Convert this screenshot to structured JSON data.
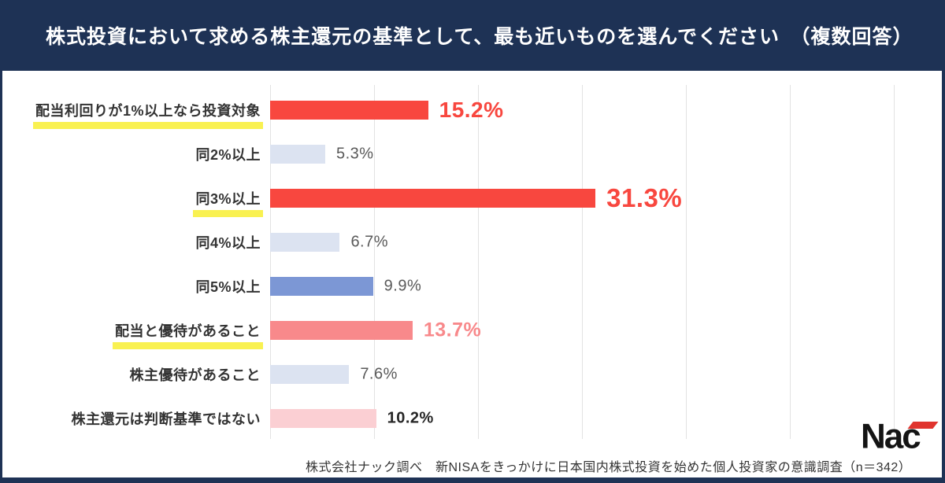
{
  "header": {
    "title": "株式投資において求める株主還元の基準として、最も近いものを選んでください　（複数回答）",
    "background": "#1E3255",
    "text_color": "#FFFFFF"
  },
  "chart_data": {
    "type": "bar",
    "orientation": "horizontal",
    "title": "株式投資において求める株主還元の基準として、最も近いものを選んでください（複数回答）",
    "categories": [
      "配当利回りが1%以上なら投資対象",
      "同2%以上",
      "同3%以上",
      "同4%以上",
      "同5%以上",
      "配当と優待があること",
      "株主優待があること",
      "株主還元は判断基準ではない"
    ],
    "values": [
      15.2,
      5.3,
      31.3,
      6.7,
      9.9,
      13.7,
      7.6,
      10.2
    ],
    "value_labels": [
      "15.2%",
      "5.3%",
      "31.3%",
      "6.7%",
      "9.9%",
      "13.7%",
      "7.6%",
      "10.2%"
    ],
    "highlighted": [
      true,
      false,
      true,
      false,
      false,
      true,
      false,
      false
    ],
    "bar_colors": [
      "#F8473F",
      "#DCE3F1",
      "#F8473F",
      "#DCE3F1",
      "#7C97D5",
      "#F8898B",
      "#DCE3F1",
      "#FBCFD3"
    ],
    "value_label_styles": [
      "v-red-lg",
      "v-gray",
      "v-red-xl",
      "v-gray",
      "v-gray",
      "v-salmon",
      "v-gray",
      "v-dark"
    ],
    "xlabel": "",
    "ylabel": "",
    "xlim": [
      0,
      60
    ],
    "gridline_step_pct": 10,
    "grid": true,
    "legend": false,
    "highlight_color": "#F9F151",
    "source_note": "株式会社ナック調べ　新NISAをきっかけに日本国内株式投資を始めた個人投資家の意識調査（n＝342）"
  },
  "footer": {
    "source": "株式会社ナック調べ　新NISAをきっかけに日本国内株式投資を始めた個人投資家の意識調査（n＝342）"
  },
  "logo": {
    "text": "Nac",
    "accent_color": "#E0342E"
  }
}
